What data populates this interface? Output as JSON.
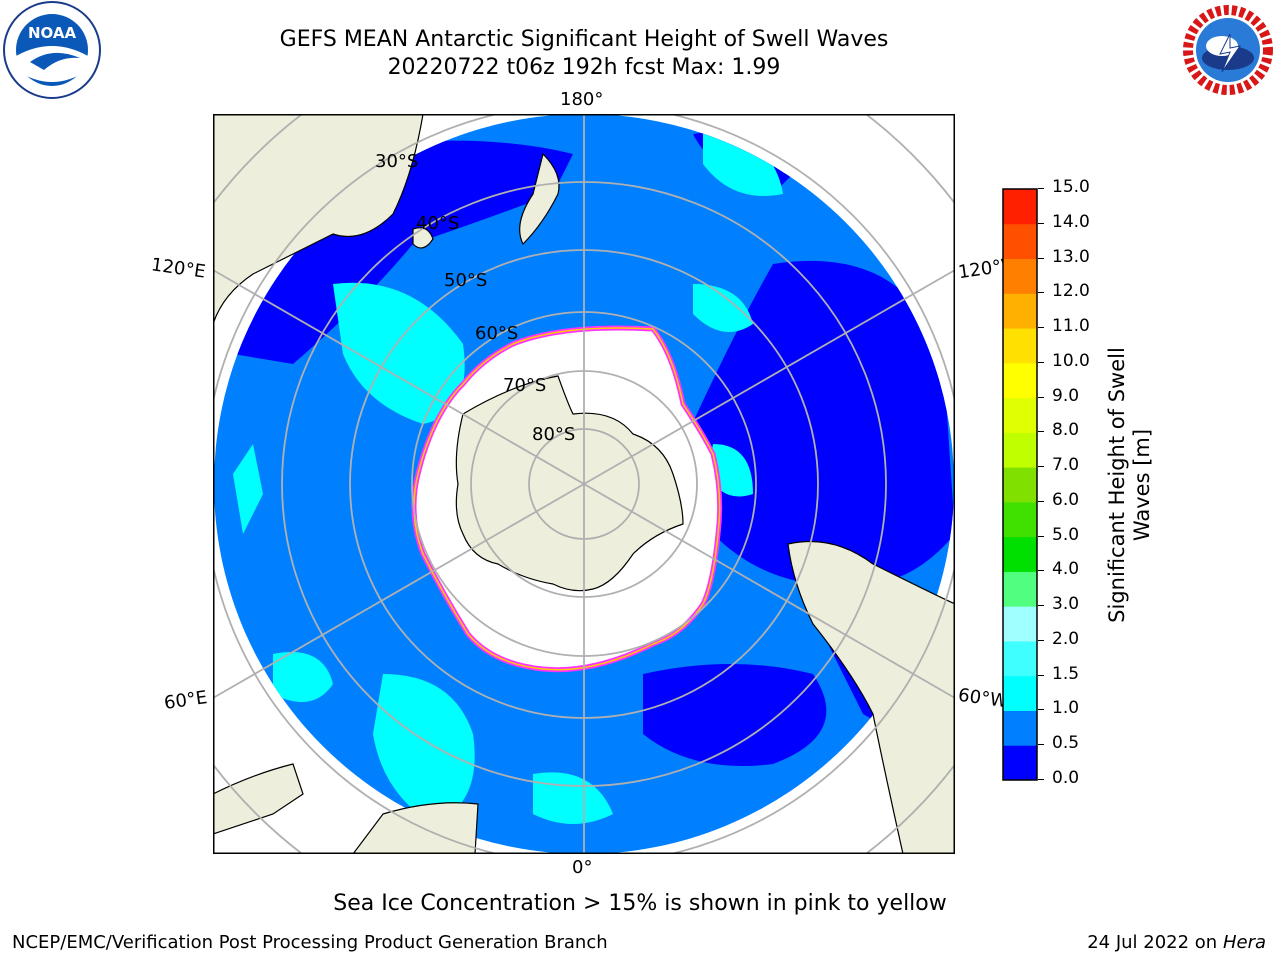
{
  "header": {
    "title_line1": "GEFS MEAN Antarctic Significant Height of Swell Waves",
    "title_line2": "20220722 t06z 192h fcst   Max: 1.99"
  },
  "logos": {
    "left": {
      "icon": "noaa-logo-icon",
      "text": "NOAA"
    },
    "right": {
      "icon": "nws-logo-icon",
      "text": "NATIONAL WEATHER SERVICE"
    }
  },
  "map": {
    "longitude_labels": [
      "180°",
      "0°",
      "120°E",
      "120°W",
      "60°E",
      "60°W"
    ],
    "latitude_labels": [
      "30°S",
      "40°S",
      "50°S",
      "60°S",
      "70°S",
      "80°S"
    ],
    "colors": {
      "land": "#eeeedc",
      "ocean_low": "#0000ff",
      "ocean_mid": "#0080ff",
      "ocean_cyan": "#00ffff",
      "ice": "#ffffff",
      "ice_edge_pink": "#ff33ff",
      "ice_edge_yellow": "#ffcc00",
      "grid": "#b0b0b0"
    }
  },
  "colorbar": {
    "title": "Significant Height of Swell Waves [m]",
    "ticks": [
      "0.0",
      "0.5",
      "1.0",
      "1.5",
      "2.0",
      "3.0",
      "4.0",
      "5.0",
      "6.0",
      "7.0",
      "8.0",
      "9.0",
      "10.0",
      "11.0",
      "12.0",
      "13.0",
      "14.0",
      "15.0"
    ],
    "colors": [
      "#0000ff",
      "#0080ff",
      "#00ffff",
      "#40ffff",
      "#a0ffff",
      "#50ff80",
      "#00e000",
      "#40e000",
      "#80e000",
      "#c0ff00",
      "#e0ff00",
      "#ffff00",
      "#ffe000",
      "#ffb000",
      "#ff8000",
      "#ff5000",
      "#ff2000",
      "#ff0000"
    ]
  },
  "note": "Sea Ice Concentration > 15% is shown in pink to yellow",
  "footer": {
    "left": "NCEP/EMC/Verification Post Processing Product Generation Branch",
    "right_date": "24 Jul 2022 on ",
    "right_host": "Hera"
  }
}
